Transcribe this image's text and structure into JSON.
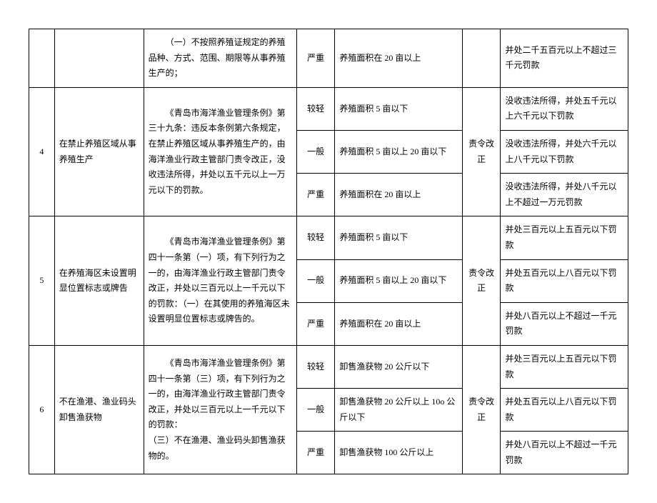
{
  "rows": [
    {
      "num": "",
      "item": "",
      "basis": "（一）不按照养殖证规定的养殖品种、方式、范围、期限等从事养殖生产的；",
      "sub": [
        {
          "level": "严重",
          "cond": "养殖面积在 20 亩以上",
          "order": "",
          "pen": "并处二千五百元以上不超过三千元罚款"
        }
      ]
    },
    {
      "num": "4",
      "item": "在禁止养殖区域从事养殖生产",
      "basis": "《青岛市海洋渔业管理条例》第三十九条：违反本条例第六条规定，在禁止养殖区域从事养殖生产的，由海洋渔业行政主管部门责令改正，没收违法所得，并处以五千元以上一万元以下的罚款。",
      "order": "责令改正",
      "sub": [
        {
          "level": "较轻",
          "cond": "养殖面积 5 亩以下",
          "pen": "没收违法所得，并处五千元以上六千元以下罚款"
        },
        {
          "level": "一般",
          "cond": "养殖面积 5 亩以上 20 亩以下",
          "pen": "没收违法所得，并处六千元以上八千元以下罚款"
        },
        {
          "level": "严重",
          "cond": "养殖面积在 20 亩以上",
          "pen": "没收违法所得，并处八千元以上不超过一万元罚款"
        }
      ]
    },
    {
      "num": "5",
      "item": "在养殖海区未设置明显位置标志或牌告",
      "basis": "《青岛市海洋渔业管理条例》第四十一条第（一）项，有下列行为之一的，由海洋渔业行政主管部门责令改正，并处以三百元以上一千元以下的罚款：（一）在其使用的养殖海区未设置明显位置标志或牌告的。",
      "order": "责令改正",
      "sub": [
        {
          "level": "较轻",
          "cond": "养殖面积 5 亩以下",
          "pen": "并处三百元以上五百元以下罚款"
        },
        {
          "level": "一般",
          "cond": "养殖面积 5 亩以上 20 亩以下",
          "pen": "并处五百元以上八百元以下罚款"
        },
        {
          "level": "严重",
          "cond": "养殖面积在 20 亩以上",
          "pen": "并处八百元以上不超过一千元罚款"
        }
      ]
    },
    {
      "num": "6",
      "item": "不在渔港、渔业码头卸售渔获物",
      "basis": "《青岛市海洋渔业管理条例》第四十一条第（三）项，有下列行为之一的，由海洋渔业行政主管部门责令改正，并处以三百元以上一千元以下的罚款：\n（三）不在渔港、渔业码头卸售渔获物的。",
      "order": "责令改正",
      "sub": [
        {
          "level": "较轻",
          "cond": "卸售渔获物 20 公斤以下",
          "pen": "并处三百元以上五百元以下罚款"
        },
        {
          "level": "一般",
          "cond": "卸售渔获物 20 公斤以上 10o 公斤以下",
          "pen": "并处五百元以上八百元以下罚款"
        },
        {
          "level": "严重",
          "cond": "卸售渔获物 100 公斤以上",
          "pen": "并处八百元以上不超过一千元罚款"
        }
      ]
    }
  ]
}
